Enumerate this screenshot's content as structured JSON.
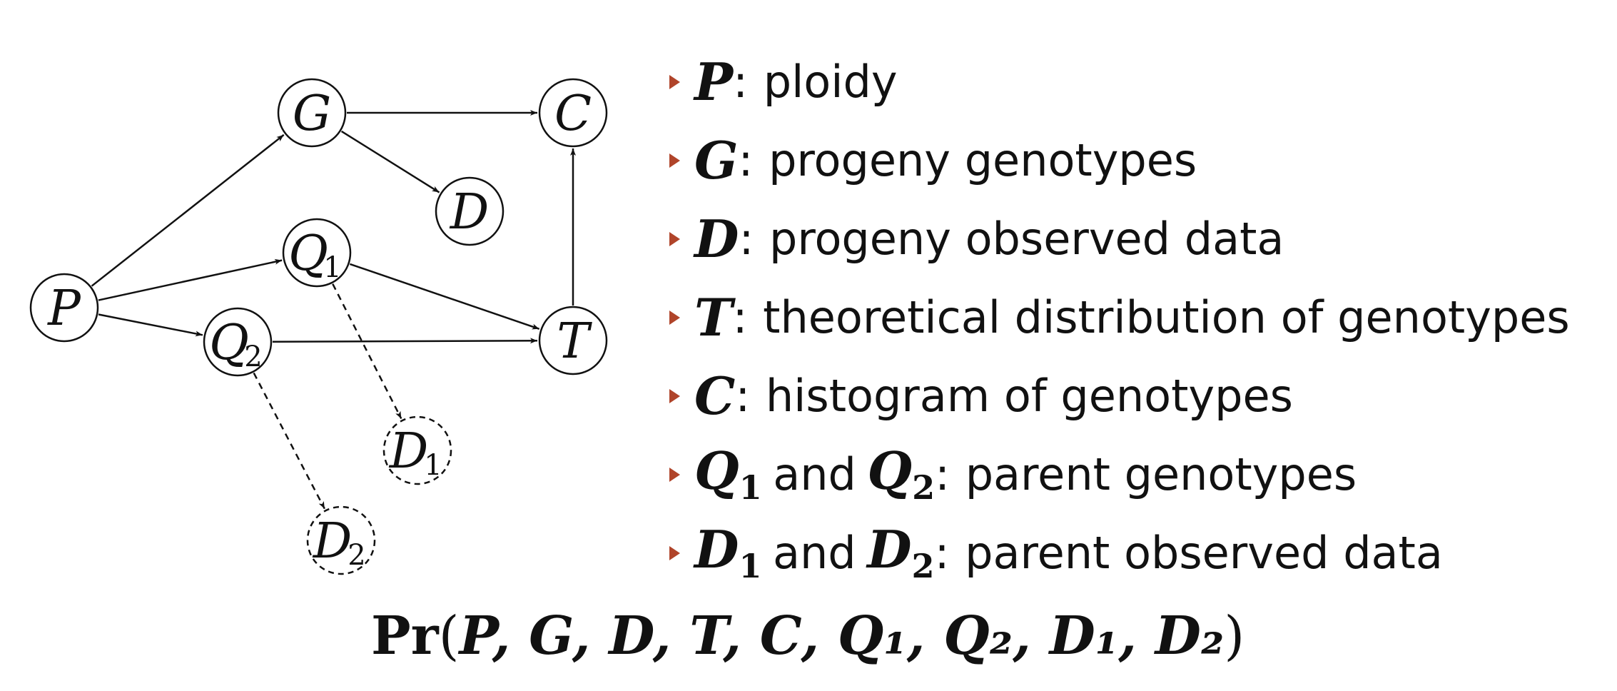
{
  "diagram": {
    "nodes": [
      {
        "id": "P",
        "label": "P",
        "sub": "",
        "style": "solid"
      },
      {
        "id": "G",
        "label": "G",
        "sub": "",
        "style": "solid"
      },
      {
        "id": "C",
        "label": "C",
        "sub": "",
        "style": "solid"
      },
      {
        "id": "D",
        "label": "D",
        "sub": "",
        "style": "solid"
      },
      {
        "id": "Q1",
        "label": "Q",
        "sub": "1",
        "style": "solid"
      },
      {
        "id": "Q2",
        "label": "Q",
        "sub": "2",
        "style": "solid"
      },
      {
        "id": "T",
        "label": "T",
        "sub": "",
        "style": "solid"
      },
      {
        "id": "D1",
        "label": "D",
        "sub": "1",
        "style": "dashed"
      },
      {
        "id": "D2",
        "label": "D",
        "sub": "2",
        "style": "dashed"
      }
    ],
    "edges": [
      {
        "from": "P",
        "to": "G",
        "style": "solid"
      },
      {
        "from": "P",
        "to": "Q1",
        "style": "solid"
      },
      {
        "from": "P",
        "to": "Q2",
        "style": "solid"
      },
      {
        "from": "G",
        "to": "C",
        "style": "solid"
      },
      {
        "from": "G",
        "to": "D",
        "style": "solid"
      },
      {
        "from": "Q1",
        "to": "T",
        "style": "solid"
      },
      {
        "from": "Q2",
        "to": "T",
        "style": "solid"
      },
      {
        "from": "T",
        "to": "C",
        "style": "solid"
      },
      {
        "from": "Q1",
        "to": "D1",
        "style": "dashed"
      },
      {
        "from": "Q2",
        "to": "D2",
        "style": "dashed"
      }
    ]
  },
  "legend": {
    "bullet_color": "#b0442a",
    "items": [
      {
        "sym1": "P",
        "sub1": "",
        "conj": "",
        "sym2": "",
        "sub2": "",
        "colon": ":",
        "desc": "ploidy"
      },
      {
        "sym1": "G",
        "sub1": "",
        "conj": "",
        "sym2": "",
        "sub2": "",
        "colon": ":",
        "desc": "progeny genotypes"
      },
      {
        "sym1": "D",
        "sub1": "",
        "conj": "",
        "sym2": "",
        "sub2": "",
        "colon": ":",
        "desc": "progeny observed data"
      },
      {
        "sym1": "T",
        "sub1": "",
        "conj": "",
        "sym2": "",
        "sub2": "",
        "colon": ":",
        "desc": "theoretical distribution of genotypes"
      },
      {
        "sym1": "C",
        "sub1": "",
        "conj": "",
        "sym2": "",
        "sub2": "",
        "colon": ":",
        "desc": "histogram of genotypes"
      },
      {
        "sym1": "Q",
        "sub1": "1",
        "conj": "and",
        "sym2": "Q",
        "sub2": "2",
        "colon": ":",
        "desc": "parent genotypes"
      },
      {
        "sym1": "D",
        "sub1": "1",
        "conj": "and",
        "sym2": "D",
        "sub2": "2",
        "colon": ":",
        "desc": "parent observed data"
      }
    ]
  },
  "formula": {
    "op": "Pr",
    "open": "(",
    "args": "P, G, D, T, C, Q₁, Q₂, D₁, D₂",
    "close": ")"
  }
}
